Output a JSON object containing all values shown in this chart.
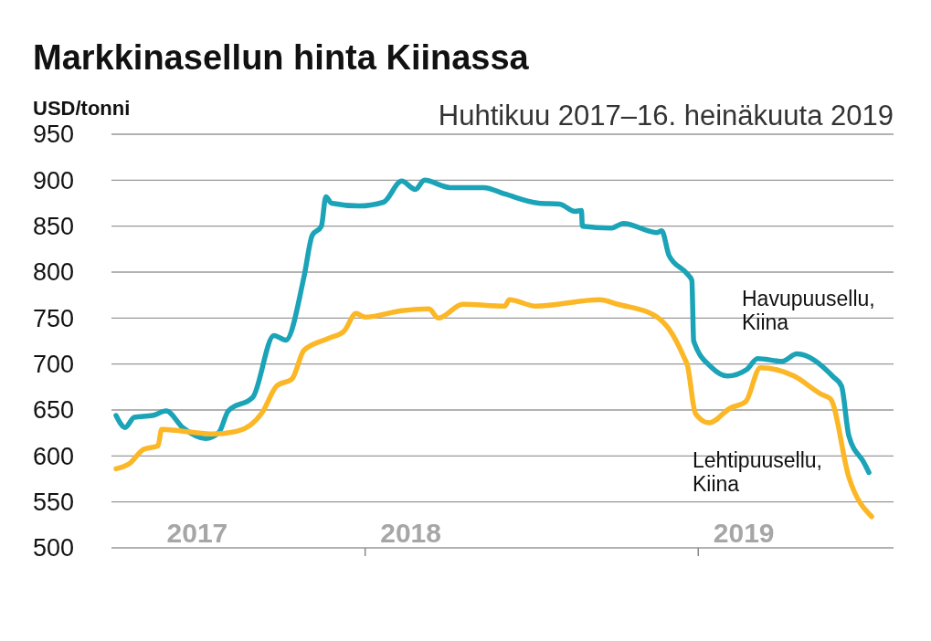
{
  "chart_data": {
    "type": "line",
    "title": "Markkinasellun hinta Kiinassa",
    "subtitle": "Huhtikuu 2017–16. heinäkuuta 2019",
    "ylabel": "USD/tonni",
    "xlim": [
      "2017-03-29",
      "2019-08-03"
    ],
    "xticks": [
      {
        "value": "2017-07-01",
        "label": "2017"
      },
      {
        "value": "2018-01-01",
        "label": null
      },
      {
        "value": "2018-02-20",
        "label": "2018"
      },
      {
        "value": "2019-01-01",
        "label": null
      },
      {
        "value": "2019-02-20",
        "label": "2019"
      }
    ],
    "ylim": [
      500,
      950
    ],
    "yticks": [
      500,
      550,
      600,
      650,
      700,
      750,
      800,
      850,
      900,
      950
    ],
    "grid": "y",
    "line_style": "solid",
    "series": [
      {
        "name": "Havupuusellu, Kiina",
        "color": "#1ba3b7",
        "x": [
          "2017-04-03",
          "2017-04-13",
          "2017-04-23",
          "2017-05-13",
          "2017-05-28",
          "2017-06-15",
          "2017-07-10",
          "2017-07-25",
          "2017-08-04",
          "2017-08-31",
          "2017-09-23",
          "2017-10-06",
          "2017-10-26",
          "2017-11-04",
          "2017-11-14",
          "2017-11-19",
          "2017-11-25",
          "2017-12-25",
          "2018-01-21",
          "2018-02-10",
          "2018-02-25",
          "2018-03-07",
          "2018-04-04",
          "2018-05-11",
          "2018-06-03",
          "2018-07-10",
          "2018-08-02",
          "2018-08-19",
          "2018-08-26",
          "2018-08-27",
          "2018-09-28",
          "2018-10-11",
          "2018-11-17",
          "2018-11-22",
          "2018-11-30",
          "2018-12-20",
          "2018-12-25",
          "2018-12-27",
          "2019-01-16",
          "2019-02-02",
          "2019-02-23",
          "2019-03-07",
          "2019-04-03",
          "2019-04-19",
          "2019-05-29",
          "2019-06-07",
          "2019-06-15",
          "2019-07-02",
          "2019-07-07"
        ],
        "values": [
          644,
          631,
          642,
          644,
          649,
          631,
          619,
          626,
          649,
          664,
          731,
          726,
          795,
          840,
          850,
          882,
          875,
          872,
          876,
          899,
          890,
          900,
          892,
          892,
          885,
          875,
          874,
          866,
          867,
          850,
          848,
          853,
          843,
          845,
          818,
          798,
          791,
          725,
          696,
          687,
          694,
          706,
          703,
          711,
          686,
          676,
          622,
          592,
          582
        ]
      },
      {
        "name": "Lehtipuusellu, Kiina",
        "color": "#fbb726",
        "x": [
          "2017-04-03",
          "2017-04-18",
          "2017-05-03",
          "2017-05-19",
          "2017-05-23",
          "2017-06-15",
          "2017-07-18",
          "2017-08-14",
          "2017-09-10",
          "2017-09-26",
          "2017-10-13",
          "2017-10-26",
          "2017-11-22",
          "2017-12-09",
          "2017-12-22",
          "2018-01-01",
          "2018-02-10",
          "2018-03-12",
          "2018-03-22",
          "2018-04-18",
          "2018-06-03",
          "2018-06-08",
          "2018-07-07",
          "2018-09-15",
          "2018-10-05",
          "2018-11-14",
          "2018-11-30",
          "2018-12-17",
          "2018-12-20",
          "2018-12-29",
          "2019-01-13",
          "2019-02-05",
          "2019-02-22",
          "2019-03-10",
          "2019-04-16",
          "2019-05-16",
          "2019-05-26",
          "2019-06-15",
          "2019-07-10"
        ],
        "values": [
          586,
          592,
          607,
          611,
          629,
          627,
          624,
          627,
          647,
          676,
          684,
          715,
          728,
          736,
          755,
          751,
          758,
          760,
          750,
          765,
          763,
          770,
          763,
          770,
          765,
          753,
          738,
          706,
          699,
          646,
          636,
          652,
          659,
          696,
          687,
          667,
          662,
          577,
          534
        ]
      }
    ]
  }
}
